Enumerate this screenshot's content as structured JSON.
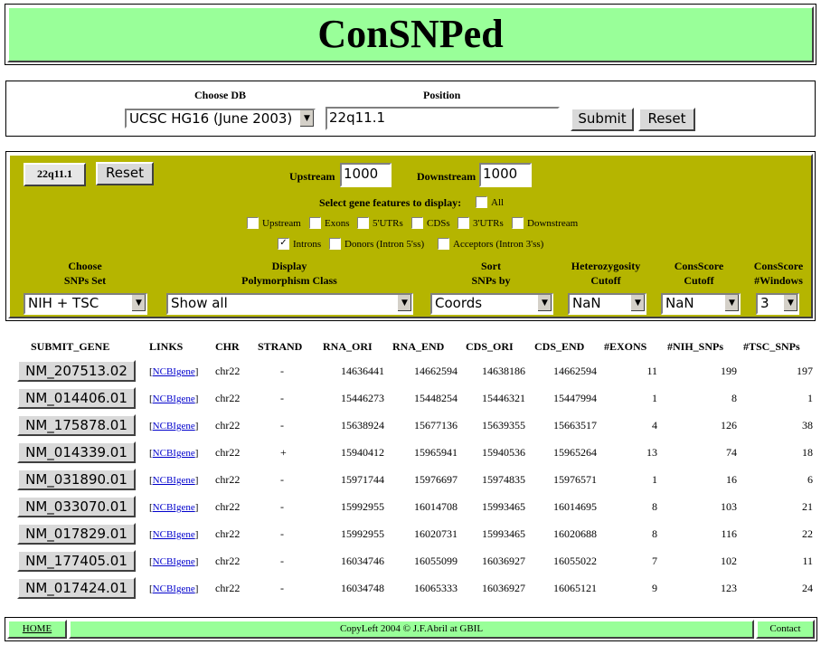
{
  "app": {
    "title": "ConSNPed"
  },
  "db_form": {
    "choose_db_label": "Choose DB",
    "db_selected": "UCSC HG16 (June 2003)",
    "position_label": "Position",
    "position_value": "22q11.1",
    "submit_label": "Submit",
    "reset_label": "Reset"
  },
  "filter_panel": {
    "position_button": "22q11.1",
    "reset_label": "Reset",
    "upstream_label": "Upstream",
    "upstream_value": "1000",
    "downstream_label": "Downstream",
    "downstream_value": "1000",
    "features_label": "Select gene features to display:",
    "all_label": "All",
    "all_checked": false,
    "features": [
      {
        "label": "Upstream",
        "checked": false
      },
      {
        "label": "Exons",
        "checked": false
      },
      {
        "label": "5'UTRs",
        "checked": false
      },
      {
        "label": "CDSs",
        "checked": false
      },
      {
        "label": "3'UTRs",
        "checked": false
      },
      {
        "label": "Downstream",
        "checked": false
      },
      {
        "label": "Introns",
        "checked": true
      },
      {
        "label": "Donors (Intron 5'ss)",
        "checked": false
      },
      {
        "label": "Acceptors (Intron 3'ss)",
        "checked": false
      }
    ],
    "controls": [
      {
        "label1": "Choose",
        "label2": "SNPs Set",
        "value": "NIH + TSC"
      },
      {
        "label1": "Display",
        "label2": "Polymorphism Class",
        "value": "Show all"
      },
      {
        "label1": "Sort",
        "label2": "SNPs by",
        "value": "Coords"
      },
      {
        "label1": "Heterozygosity",
        "label2": "Cutoff",
        "value": "NaN"
      },
      {
        "label1": "ConsScore",
        "label2": "Cutoff",
        "value": "NaN"
      },
      {
        "label1": "ConsScore",
        "label2": "#Windows",
        "value": "3"
      }
    ]
  },
  "table": {
    "headers": [
      "SUBMIT_GENE",
      "LINKS",
      "CHR",
      "STRAND",
      "RNA_ORI",
      "RNA_END",
      "CDS_ORI",
      "CDS_END",
      "#EXONS",
      "#NIH_SNPs",
      "#TSC_SNPs"
    ],
    "link_label": "NCBIgene",
    "rows": [
      {
        "gene": "NM_207513.02",
        "chr": "chr22",
        "strand": "-",
        "rna_ori": "14636441",
        "rna_end": "14662594",
        "cds_ori": "14638186",
        "cds_end": "14662594",
        "exons": "11",
        "nih": "199",
        "tsc": "197"
      },
      {
        "gene": "NM_014406.01",
        "chr": "chr22",
        "strand": "-",
        "rna_ori": "15446273",
        "rna_end": "15448254",
        "cds_ori": "15446321",
        "cds_end": "15447994",
        "exons": "1",
        "nih": "8",
        "tsc": "1"
      },
      {
        "gene": "NM_175878.01",
        "chr": "chr22",
        "strand": "-",
        "rna_ori": "15638924",
        "rna_end": "15677136",
        "cds_ori": "15639355",
        "cds_end": "15663517",
        "exons": "4",
        "nih": "126",
        "tsc": "38"
      },
      {
        "gene": "NM_014339.01",
        "chr": "chr22",
        "strand": "+",
        "rna_ori": "15940412",
        "rna_end": "15965941",
        "cds_ori": "15940536",
        "cds_end": "15965264",
        "exons": "13",
        "nih": "74",
        "tsc": "18"
      },
      {
        "gene": "NM_031890.01",
        "chr": "chr22",
        "strand": "-",
        "rna_ori": "15971744",
        "rna_end": "15976697",
        "cds_ori": "15974835",
        "cds_end": "15976571",
        "exons": "1",
        "nih": "16",
        "tsc": "6"
      },
      {
        "gene": "NM_033070.01",
        "chr": "chr22",
        "strand": "-",
        "rna_ori": "15992955",
        "rna_end": "16014708",
        "cds_ori": "15993465",
        "cds_end": "16014695",
        "exons": "8",
        "nih": "103",
        "tsc": "21"
      },
      {
        "gene": "NM_017829.01",
        "chr": "chr22",
        "strand": "-",
        "rna_ori": "15992955",
        "rna_end": "16020731",
        "cds_ori": "15993465",
        "cds_end": "16020688",
        "exons": "8",
        "nih": "116",
        "tsc": "22"
      },
      {
        "gene": "NM_177405.01",
        "chr": "chr22",
        "strand": "-",
        "rna_ori": "16034746",
        "rna_end": "16055099",
        "cds_ori": "16036927",
        "cds_end": "16055022",
        "exons": "7",
        "nih": "102",
        "tsc": "11"
      },
      {
        "gene": "NM_017424.01",
        "chr": "chr22",
        "strand": "-",
        "rna_ori": "16034748",
        "rna_end": "16065333",
        "cds_ori": "16036927",
        "cds_end": "16065121",
        "exons": "9",
        "nih": "123",
        "tsc": "24"
      }
    ]
  },
  "footer": {
    "home_label": "HOME",
    "copyright": "CopyLeft 2004 © J.F.Abril at GBIL",
    "contact_label": "Contact"
  },
  "colors": {
    "header_bg": "#99ff99",
    "panel_bg": "#b5b500",
    "link": "#0000cc"
  }
}
